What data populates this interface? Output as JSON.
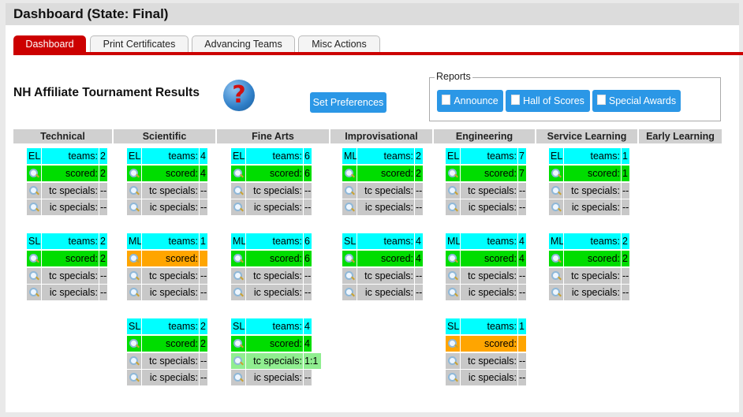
{
  "window_title": "Dashboard (State: Final)",
  "tabs": [
    "Dashboard",
    "Print Certificates",
    "Advancing Teams",
    "Misc Actions"
  ],
  "tournament_title": "NH Affiliate Tournament Results",
  "help_glyph": "?",
  "set_preferences_label": "Set Preferences",
  "reports": {
    "legend": "Reports",
    "buttons": [
      "Announce",
      "Hall of Scores",
      "Special Awards"
    ]
  },
  "colors": {
    "accent": "#cc0000",
    "button": "#2b97e6",
    "level": "#00ffff",
    "scored_complete": "#00dd00",
    "scored_incomplete": "#ffa500",
    "special_empty": "#c8c8c8",
    "special_done": "#90ee90"
  },
  "labels": {
    "teams": "teams:",
    "scored": "scored:",
    "tc_specials": "tc specials:",
    "ic_specials": "ic specials:"
  },
  "categories": [
    {
      "name": "Technical",
      "blocks": [
        {
          "level": "EL",
          "teams": "2",
          "scored": "2",
          "scored_state": "complete",
          "tc": "--",
          "tc_state": "none",
          "ic": "--"
        },
        {
          "level": "SL",
          "teams": "2",
          "scored": "2",
          "scored_state": "complete",
          "tc": "--",
          "tc_state": "none",
          "ic": "--"
        }
      ]
    },
    {
      "name": "Scientific",
      "blocks": [
        {
          "level": "EL",
          "teams": "4",
          "scored": "4",
          "scored_state": "complete",
          "tc": "--",
          "tc_state": "none",
          "ic": "--"
        },
        {
          "level": "ML",
          "teams": "1",
          "scored": "",
          "scored_state": "incomplete",
          "tc": "--",
          "tc_state": "none",
          "ic": "--"
        },
        {
          "level": "SL",
          "teams": "2",
          "scored": "2",
          "scored_state": "complete",
          "tc": "--",
          "tc_state": "none",
          "ic": "--"
        }
      ]
    },
    {
      "name": "Fine Arts",
      "blocks": [
        {
          "level": "EL",
          "teams": "6",
          "scored": "6",
          "scored_state": "complete",
          "tc": "--",
          "tc_state": "none",
          "ic": "--"
        },
        {
          "level": "ML",
          "teams": "6",
          "scored": "6",
          "scored_state": "complete",
          "tc": "--",
          "tc_state": "none",
          "ic": "--"
        },
        {
          "level": "SL",
          "teams": "4",
          "scored": "4",
          "scored_state": "complete",
          "tc": "1:1",
          "tc_state": "done",
          "ic": "--"
        }
      ]
    },
    {
      "name": "Improvisational",
      "blocks": [
        {
          "level": "ML",
          "teams": "2",
          "scored": "2",
          "scored_state": "complete",
          "tc": "--",
          "tc_state": "none",
          "ic": "--"
        },
        {
          "level": "SL",
          "teams": "4",
          "scored": "4",
          "scored_state": "complete",
          "tc": "--",
          "tc_state": "none",
          "ic": "--"
        }
      ]
    },
    {
      "name": "Engineering",
      "blocks": [
        {
          "level": "EL",
          "teams": "7",
          "scored": "7",
          "scored_state": "complete",
          "tc": "--",
          "tc_state": "none",
          "ic": "--"
        },
        {
          "level": "ML",
          "teams": "4",
          "scored": "4",
          "scored_state": "complete",
          "tc": "--",
          "tc_state": "none",
          "ic": "--"
        },
        {
          "level": "SL",
          "teams": "1",
          "scored": "",
          "scored_state": "incomplete",
          "tc": "--",
          "tc_state": "none",
          "ic": "--"
        }
      ]
    },
    {
      "name": "Service Learning",
      "blocks": [
        {
          "level": "EL",
          "teams": "1",
          "scored": "1",
          "scored_state": "complete",
          "tc": "--",
          "tc_state": "none",
          "ic": "--"
        },
        {
          "level": "ML",
          "teams": "2",
          "scored": "2",
          "scored_state": "complete",
          "tc": "--",
          "tc_state": "none",
          "ic": "--"
        }
      ]
    },
    {
      "name": "Early Learning",
      "blocks": []
    }
  ]
}
